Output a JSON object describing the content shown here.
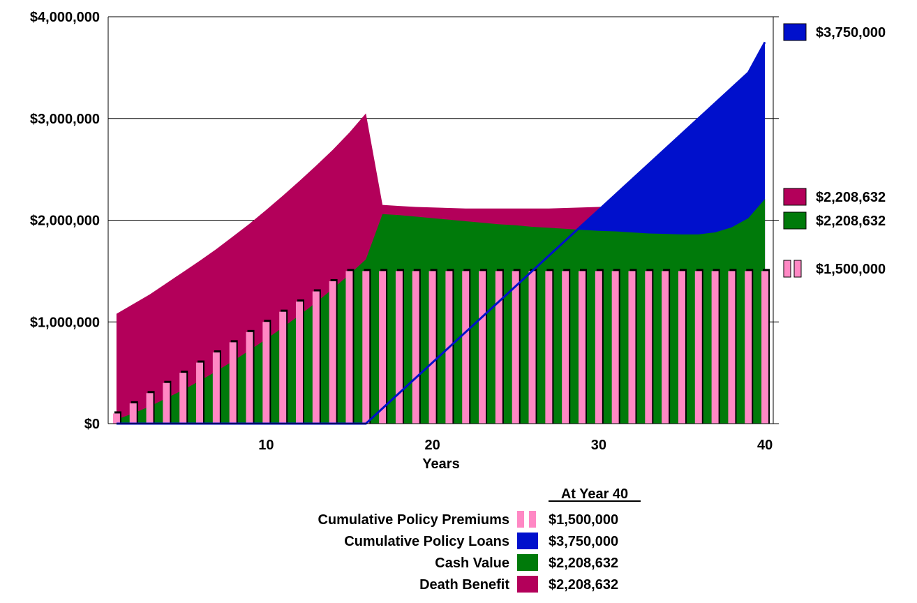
{
  "colors": {
    "death_benefit": "#b3005a",
    "cash_value": "#007a0a",
    "policy_loans": "#0010cc",
    "premiums": "#ff88c4",
    "premium_shadow": "#000000",
    "grid": "#000000",
    "background": "#ffffff"
  },
  "chart_data": {
    "type": "area",
    "xlabel": "Years",
    "ylabel": "",
    "title": "",
    "xlim": [
      0.5,
      40.5
    ],
    "ylim": [
      0,
      4000000
    ],
    "x_ticks": [
      10,
      20,
      30,
      40
    ],
    "x_tick_labels": [
      "10",
      "20",
      "30",
      "40"
    ],
    "y_ticks": [
      0,
      1000000,
      2000000,
      3000000,
      4000000
    ],
    "y_tick_labels": [
      "$0",
      "$1,000,000",
      "$2,000,000",
      "$3,000,000",
      "$4,000,000"
    ],
    "grid": "horizontal",
    "years": [
      1,
      2,
      3,
      4,
      5,
      6,
      7,
      8,
      9,
      10,
      11,
      12,
      13,
      14,
      15,
      16,
      17,
      18,
      19,
      20,
      21,
      22,
      23,
      24,
      25,
      26,
      27,
      28,
      29,
      30,
      31,
      32,
      33,
      34,
      35,
      36,
      37,
      38,
      39,
      40
    ],
    "series": [
      {
        "name": "Death Benefit",
        "key": "death_benefit",
        "kind": "area",
        "values": [
          1080000,
          1175000,
          1270000,
          1380000,
          1490000,
          1600000,
          1715000,
          1840000,
          1965000,
          2100000,
          2240000,
          2385000,
          2535000,
          2690000,
          2860000,
          3050000,
          2150000,
          2140000,
          2130000,
          2125000,
          2120000,
          2115000,
          2115000,
          2115000,
          2115000,
          2115000,
          2115000,
          2120000,
          2125000,
          2130000,
          2140000,
          2150000,
          2100000,
          2050000,
          2000000,
          1950000,
          1920000,
          1940000,
          2050000,
          2208632
        ]
      },
      {
        "name": "Cash Value",
        "key": "cash_value",
        "kind": "area",
        "values": [
          40000,
          100000,
          170000,
          250000,
          330000,
          420000,
          515000,
          615000,
          720000,
          830000,
          945000,
          1065000,
          1190000,
          1325000,
          1465000,
          1615000,
          2060000,
          2050000,
          2035000,
          2020000,
          2005000,
          1990000,
          1975000,
          1960000,
          1950000,
          1935000,
          1925000,
          1915000,
          1905000,
          1895000,
          1890000,
          1880000,
          1870000,
          1865000,
          1860000,
          1860000,
          1880000,
          1930000,
          2020000,
          2208632
        ]
      },
      {
        "name": "Cumulative Policy Loans",
        "key": "policy_loans",
        "kind": "area",
        "values": [
          0,
          0,
          0,
          0,
          0,
          0,
          0,
          0,
          0,
          0,
          0,
          0,
          0,
          0,
          0,
          0,
          150000,
          300000,
          450000,
          600000,
          750000,
          900000,
          1050000,
          1200000,
          1350000,
          1500000,
          1650000,
          1800000,
          1950000,
          2100000,
          2250000,
          2400000,
          2550000,
          2700000,
          2850000,
          3000000,
          3150000,
          3300000,
          3450000,
          3750000
        ]
      },
      {
        "name": "Cumulative Policy Premiums",
        "key": "premiums",
        "kind": "bar",
        "values": [
          100000,
          200000,
          300000,
          400000,
          500000,
          600000,
          700000,
          800000,
          900000,
          1000000,
          1100000,
          1200000,
          1300000,
          1400000,
          1500000,
          1500000,
          1500000,
          1500000,
          1500000,
          1500000,
          1500000,
          1500000,
          1500000,
          1500000,
          1500000,
          1500000,
          1500000,
          1500000,
          1500000,
          1500000,
          1500000,
          1500000,
          1500000,
          1500000,
          1500000,
          1500000,
          1500000,
          1500000,
          1500000,
          1500000
        ]
      }
    ],
    "end_labels": [
      {
        "key": "policy_loans",
        "text": "$3,750,000",
        "value": 3750000
      },
      {
        "key": "death_benefit",
        "text": "$2,208,632",
        "value": 2208632
      },
      {
        "key": "cash_value",
        "text": "$2,208,632",
        "value": 2208632
      },
      {
        "key": "premiums",
        "text": "$1,500,000",
        "value": 1500000
      }
    ],
    "summary_table": {
      "header": "At Year 40",
      "rows": [
        {
          "label": "Cumulative Policy Premiums",
          "key": "premiums",
          "value": "$1,500,000"
        },
        {
          "label": "Cumulative Policy Loans",
          "key": "policy_loans",
          "value": "$3,750,000"
        },
        {
          "label": "Cash Value",
          "key": "cash_value",
          "value": "$2,208,632"
        },
        {
          "label": "Death Benefit",
          "key": "death_benefit",
          "value": "$2,208,632"
        }
      ]
    }
  }
}
